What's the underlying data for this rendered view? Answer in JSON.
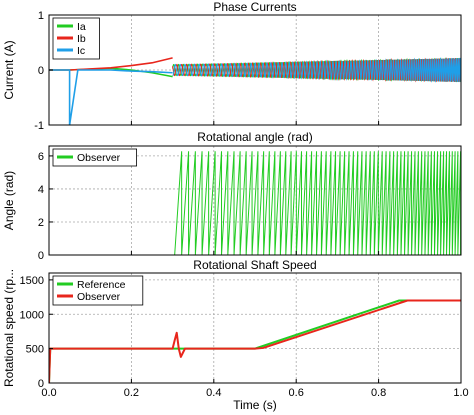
{
  "chart_data": [
    {
      "type": "line",
      "title": "Phase Currents",
      "ylabel": "Current (A)",
      "xlabel": "",
      "xlim": [
        0,
        1
      ],
      "ylim": [
        -1,
        1
      ],
      "xticks": [
        0,
        0.2,
        0.4,
        0.6,
        0.8,
        1
      ],
      "yticks": [
        -1,
        0,
        1
      ],
      "ytick_labels": [
        "-1",
        "0",
        "1"
      ],
      "grid": true,
      "legend_position": "top-left",
      "series": [
        {
          "name": "Ia",
          "color": "#22cc22",
          "x": [
            0,
            0.05,
            0.05,
            0.15,
            0.2,
            0.25,
            0.3
          ],
          "y": [
            0,
            0,
            0,
            0.03,
            0.0,
            -0.05,
            -0.12
          ]
        },
        {
          "name": "Ib",
          "color": "#e8261c",
          "x": [
            0,
            0.05,
            0.05,
            0.15,
            0.2,
            0.25,
            0.3
          ],
          "y": [
            0,
            0,
            0,
            0.04,
            0.08,
            0.13,
            0.22
          ]
        },
        {
          "name": "Ic",
          "color": "#1f9fe8",
          "x": [
            0,
            0.05,
            0.05,
            0.07,
            0.15,
            0.2,
            0.25,
            0.3
          ],
          "y": [
            0,
            0,
            -1,
            0,
            0,
            -0.02,
            -0.03,
            -0.05
          ]
        }
      ],
      "oscillation": {
        "start": 0.3,
        "end": 1.0,
        "amp_start": 0.1,
        "amp_end": 0.22,
        "period_start": 0.012,
        "period_end": 0.004
      }
    },
    {
      "type": "line",
      "title": "Rotational angle (rad)",
      "ylabel": "Angle (rad)",
      "xlabel": "",
      "xlim": [
        0,
        1
      ],
      "ylim": [
        0,
        6.6
      ],
      "xticks": [
        0,
        0.2,
        0.4,
        0.6,
        0.8,
        1
      ],
      "yticks": [
        0,
        2,
        4,
        6
      ],
      "ytick_labels": [
        "0",
        "2",
        "4",
        "6"
      ],
      "grid": true,
      "legend_position": "top-left",
      "series": [
        {
          "name": "Observer",
          "color": "#22cc22"
        }
      ],
      "sawtooth": {
        "start": 0.305,
        "end": 1.0,
        "peak": 6.28,
        "period_start": 0.017,
        "period_end": 0.0065
      }
    },
    {
      "type": "line",
      "title": "Rotational Shaft Speed",
      "ylabel": "Rotational speed (rp...",
      "xlabel": "Time (s)",
      "xlim": [
        0,
        1
      ],
      "ylim": [
        0,
        1600
      ],
      "xticks": [
        0,
        0.2,
        0.4,
        0.6,
        0.8,
        1
      ],
      "xtick_labels": [
        "0.0",
        "0.2",
        "0.4",
        "0.6",
        "0.8",
        "1.0"
      ],
      "yticks": [
        0,
        500,
        1000,
        1500
      ],
      "ytick_labels": [
        "0",
        "500",
        "1000",
        "1500"
      ],
      "grid": true,
      "legend_position": "top-left",
      "series": [
        {
          "name": "Reference",
          "color": "#22cc22",
          "x": [
            0,
            0.003,
            0.5,
            0.85,
            1.0
          ],
          "y": [
            0,
            500,
            500,
            1200,
            1200
          ]
        },
        {
          "name": "Observer",
          "color": "#e8261c",
          "x": [
            0,
            0.003,
            0.3,
            0.305,
            0.31,
            0.315,
            0.32,
            0.33,
            0.5,
            0.52,
            0.87,
            1.0
          ],
          "y": [
            0,
            500,
            500,
            620,
            730,
            500,
            380,
            500,
            500,
            510,
            1200,
            1200
          ]
        }
      ]
    }
  ]
}
